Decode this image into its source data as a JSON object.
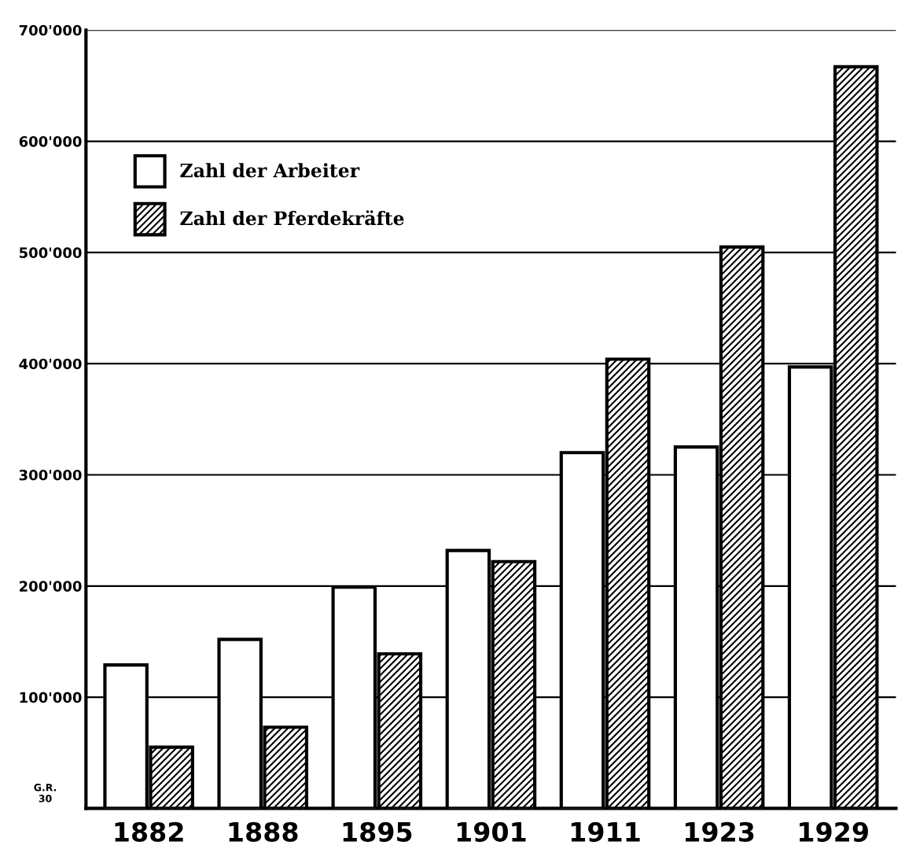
{
  "chart_data": {
    "type": "bar",
    "categories": [
      "1882",
      "1888",
      "1895",
      "1901",
      "1911",
      "1923",
      "1929"
    ],
    "series": [
      {
        "name": "Zahl der Arbeiter",
        "color": "#ffffff",
        "values": [
          129000,
          152000,
          199000,
          232000,
          320000,
          325000,
          397000
        ]
      },
      {
        "name": "Zahl der Pferdekräfte",
        "color": "#000000",
        "values": [
          55000,
          73000,
          139000,
          222000,
          404000,
          505000,
          667000
        ]
      }
    ],
    "ylim": [
      0,
      700000
    ],
    "yticks": [
      {
        "value": 100000,
        "label": "100'000"
      },
      {
        "value": 200000,
        "label": "200'000"
      },
      {
        "value": 300000,
        "label": "300'000"
      },
      {
        "value": 400000,
        "label": "400'000"
      },
      {
        "value": 500000,
        "label": "500'000"
      },
      {
        "value": 600000,
        "label": "600'000"
      },
      {
        "value": 700000,
        "label": "700'000"
      }
    ],
    "grid": "y",
    "legend": "top left",
    "annotations": [
      "G.R.\n30"
    ]
  }
}
